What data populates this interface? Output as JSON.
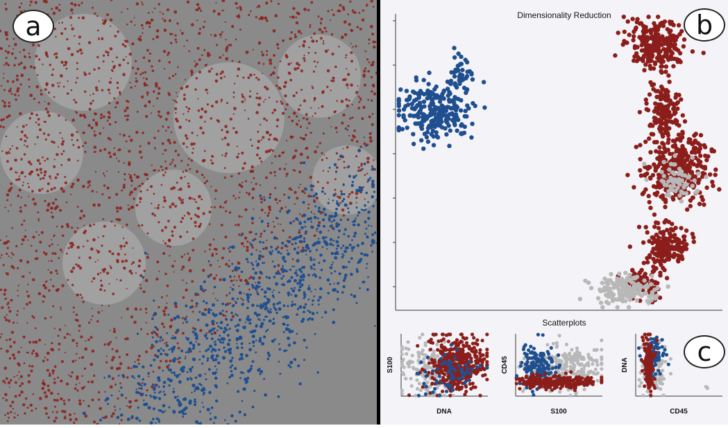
{
  "panels": {
    "a": {
      "badge": "a"
    },
    "b": {
      "badge": "b",
      "title": "Dimensionality Reduction"
    },
    "c": {
      "badge": "c",
      "title": "Scatterplots"
    }
  },
  "colors": {
    "tumor": "#8b1e1a",
    "immune": "#1f4f8f",
    "unselected": "#b8b8b8",
    "tissue_background": "#8a8a8a"
  },
  "chart_data": [
    {
      "type": "scatter",
      "title": "Dimensionality Reduction",
      "xlabel": "",
      "ylabel": "",
      "series": [
        {
          "color": "#1f4f8f",
          "clusters": [
            {
              "cx": 0.12,
              "cy": 0.33,
              "rx": 0.11,
              "ry": 0.1,
              "n": 260
            },
            {
              "cx": 0.2,
              "cy": 0.2,
              "rx": 0.04,
              "ry": 0.05,
              "n": 40
            }
          ]
        },
        {
          "color": "#8b1e1a",
          "clusters": [
            {
              "cx": 0.8,
              "cy": 0.1,
              "rx": 0.09,
              "ry": 0.08,
              "n": 260
            },
            {
              "cx": 0.82,
              "cy": 0.32,
              "rx": 0.05,
              "ry": 0.1,
              "n": 140
            },
            {
              "cx": 0.86,
              "cy": 0.52,
              "rx": 0.1,
              "ry": 0.12,
              "n": 360
            },
            {
              "cx": 0.83,
              "cy": 0.78,
              "rx": 0.06,
              "ry": 0.07,
              "n": 160
            },
            {
              "cx": 0.76,
              "cy": 0.9,
              "rx": 0.06,
              "ry": 0.05,
              "n": 80
            }
          ]
        },
        {
          "color": "#b8b8b8",
          "clusters": [
            {
              "cx": 0.7,
              "cy": 0.93,
              "rx": 0.09,
              "ry": 0.05,
              "n": 160
            },
            {
              "cx": 0.85,
              "cy": 0.56,
              "rx": 0.07,
              "ry": 0.07,
              "n": 60
            }
          ]
        }
      ]
    },
    {
      "type": "scatter",
      "xlabel": "DNA",
      "ylabel": "S100",
      "series": [
        {
          "color": "#b8b8b8",
          "clusters": [
            {
              "cx": 0.3,
              "cy": 0.55,
              "rx": 0.3,
              "ry": 0.45,
              "n": 160
            }
          ]
        },
        {
          "color": "#8b1e1a",
          "clusters": [
            {
              "cx": 0.65,
              "cy": 0.5,
              "rx": 0.33,
              "ry": 0.46,
              "n": 420
            }
          ]
        },
        {
          "color": "#1f4f8f",
          "clusters": [
            {
              "cx": 0.55,
              "cy": 0.62,
              "rx": 0.35,
              "ry": 0.35,
              "n": 70
            }
          ]
        }
      ]
    },
    {
      "type": "scatter",
      "xlabel": "S100",
      "ylabel": "CD45",
      "series": [
        {
          "color": "#b8b8b8",
          "clusters": [
            {
              "cx": 0.55,
              "cy": 0.55,
              "rx": 0.45,
              "ry": 0.35,
              "n": 260
            }
          ]
        },
        {
          "color": "#1f4f8f",
          "clusters": [
            {
              "cx": 0.25,
              "cy": 0.55,
              "rx": 0.2,
              "ry": 0.35,
              "n": 160
            }
          ]
        },
        {
          "color": "#8b1e1a",
          "clusters": [
            {
              "cx": 0.5,
              "cy": 0.77,
              "rx": 0.45,
              "ry": 0.1,
              "n": 260
            }
          ]
        }
      ]
    },
    {
      "type": "scatter",
      "xlabel": "CD45",
      "ylabel": "DNA",
      "series": [
        {
          "color": "#b8b8b8",
          "clusters": [
            {
              "cx": 0.2,
              "cy": 0.55,
              "rx": 0.18,
              "ry": 0.45,
              "n": 110
            },
            {
              "cx": 0.82,
              "cy": 0.86,
              "rx": 0.02,
              "ry": 0.02,
              "n": 3
            }
          ]
        },
        {
          "color": "#1f4f8f",
          "clusters": [
            {
              "cx": 0.2,
              "cy": 0.4,
              "rx": 0.12,
              "ry": 0.3,
              "n": 80
            }
          ]
        },
        {
          "color": "#8b1e1a",
          "clusters": [
            {
              "cx": 0.15,
              "cy": 0.45,
              "rx": 0.06,
              "ry": 0.4,
              "n": 150
            }
          ]
        }
      ]
    }
  ]
}
